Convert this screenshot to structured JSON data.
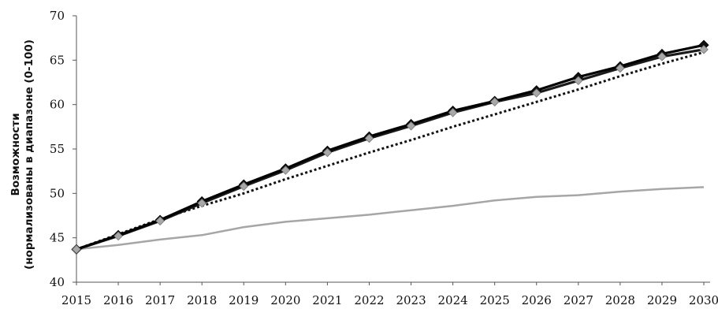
{
  "chart_data": {
    "type": "line",
    "title": "",
    "xlabel": "",
    "ylabel_lines": [
      "Возможности",
      "(нормализованы в диапазоне (0-100)"
    ],
    "ylim": [
      40,
      70
    ],
    "yticks": [
      40,
      45,
      50,
      55,
      60,
      65,
      70
    ],
    "x": [
      2015,
      2016,
      2017,
      2018,
      2019,
      2020,
      2021,
      2022,
      2023,
      2024,
      2025,
      2026,
      2027,
      2028,
      2029,
      2030
    ],
    "grid": false,
    "legend": "none",
    "series": [
      {
        "style": "solid-black-diamond",
        "color": "#000000",
        "values": [
          43.7,
          45.3,
          47.0,
          49.1,
          51.0,
          52.8,
          54.8,
          56.4,
          57.8,
          59.3,
          60.4,
          61.6,
          63.1,
          64.3,
          65.7,
          66.7
        ]
      },
      {
        "style": "solid-black-grey-diamond",
        "color": "#1a1a1a",
        "values": [
          43.7,
          45.2,
          46.9,
          48.9,
          50.8,
          52.6,
          54.6,
          56.2,
          57.6,
          59.1,
          60.3,
          61.3,
          62.7,
          64.1,
          65.4,
          66.2
        ]
      },
      {
        "style": "dotted",
        "color": "#111111",
        "values": [
          43.7,
          45.4,
          47.1,
          48.6,
          50.0,
          51.6,
          53.1,
          54.6,
          56.0,
          57.5,
          58.9,
          60.3,
          61.7,
          63.2,
          64.6,
          65.9
        ]
      },
      {
        "style": "solid-grey",
        "color": "#a6a6a6",
        "values": [
          43.7,
          44.2,
          44.8,
          45.3,
          46.2,
          46.8,
          47.2,
          47.6,
          48.1,
          48.6,
          49.2,
          49.6,
          49.8,
          50.2,
          50.5,
          50.7
        ]
      }
    ]
  }
}
